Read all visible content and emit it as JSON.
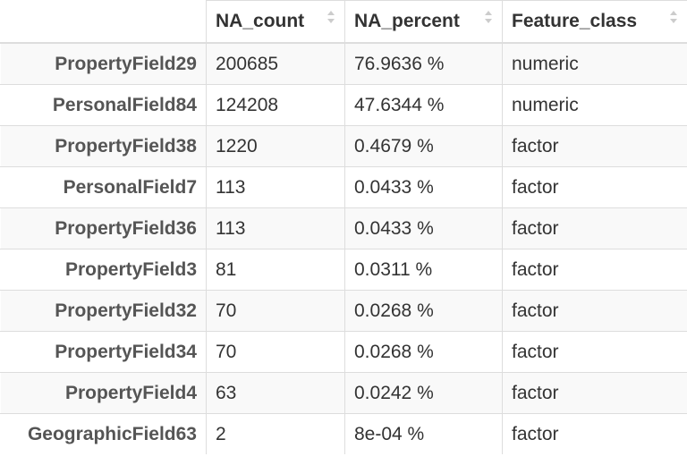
{
  "table": {
    "columns": [
      "NA_count",
      "NA_percent",
      "Feature_class"
    ],
    "rows": [
      {
        "name": "PropertyField29",
        "na_count": "200685",
        "na_percent": "76.9636 %",
        "feature_class": "numeric"
      },
      {
        "name": "PersonalField84",
        "na_count": "124208",
        "na_percent": "47.6344 %",
        "feature_class": "numeric"
      },
      {
        "name": "PropertyField38",
        "na_count": "1220",
        "na_percent": "0.4679 %",
        "feature_class": "factor"
      },
      {
        "name": "PersonalField7",
        "na_count": "113",
        "na_percent": "0.0433 %",
        "feature_class": "factor"
      },
      {
        "name": "PropertyField36",
        "na_count": "113",
        "na_percent": "0.0433 %",
        "feature_class": "factor"
      },
      {
        "name": "PropertyField3",
        "na_count": "81",
        "na_percent": "0.0311 %",
        "feature_class": "factor"
      },
      {
        "name": "PropertyField32",
        "na_count": "70",
        "na_percent": "0.0268 %",
        "feature_class": "factor"
      },
      {
        "name": "PropertyField34",
        "na_count": "70",
        "na_percent": "0.0268 %",
        "feature_class": "factor"
      },
      {
        "name": "PropertyField4",
        "na_count": "63",
        "na_percent": "0.0242 %",
        "feature_class": "factor"
      },
      {
        "name": "GeographicField63",
        "na_count": "2",
        "na_percent": "8e-04 %",
        "feature_class": "factor"
      }
    ],
    "sort_icon": "sort-both-icon",
    "colors": {
      "border": "#dddddd",
      "stripe": "#f9f9f9",
      "text": "#333333",
      "sort_icon": "#cccccc"
    }
  }
}
